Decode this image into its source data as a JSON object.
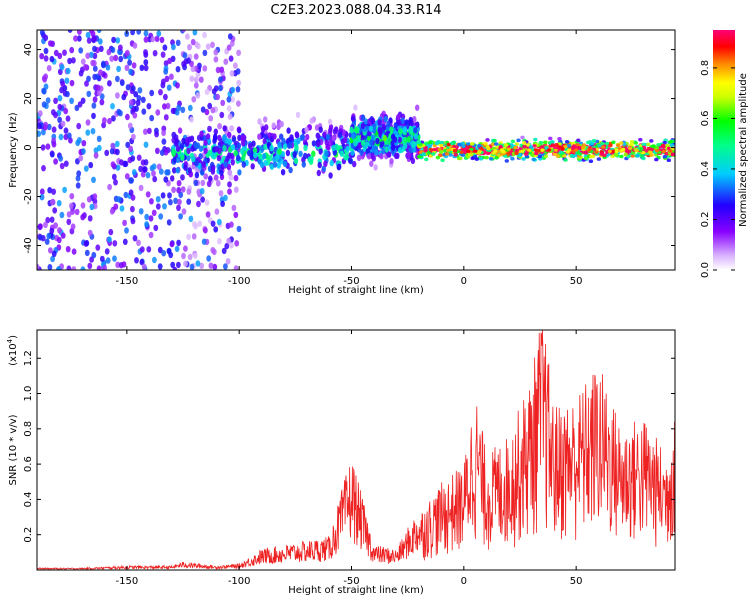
{
  "title": "C2E3.2023.088.04.33.R14",
  "colors": {
    "line": "#ee2222",
    "background": "#ffffff",
    "axis": "#000000"
  },
  "chart_data": [
    {
      "type": "heatmap",
      "xlabel": "Height of straight line (km)",
      "ylabel": "Frequency (Hz)",
      "xlim": [
        -190,
        94
      ],
      "ylim": [
        -50,
        48
      ],
      "x_ticks": [
        -150,
        -100,
        -50,
        0,
        50
      ],
      "y_ticks": [
        -40,
        -20,
        0,
        20,
        40
      ],
      "grid": false,
      "colorbar": {
        "label": "Normalized spectral amplitude",
        "range": [
          0,
          0.95
        ],
        "ticks": [
          0.0,
          0.2,
          0.4,
          0.6,
          0.8
        ],
        "colormap": [
          "#ffffff",
          "#8800ff",
          "#2200ff",
          "#00ffff",
          "#00ff00",
          "#ffff00",
          "#ff8800",
          "#ff0000",
          "#ff0088"
        ]
      },
      "regions": [
        {
          "x_range": [
            -190,
            -100
          ],
          "freq_center": 0,
          "freq_spread": 50,
          "amplitude": 0.3,
          "description": "broadband noise"
        },
        {
          "x_range": [
            -130,
            -50
          ],
          "freq_center": -3,
          "freq_spread": 8,
          "amplitude": 0.35
        },
        {
          "x_range": [
            -50,
            -20
          ],
          "freq_center": 4,
          "freq_spread": 7,
          "amplitude": 0.4
        },
        {
          "x_range": [
            -20,
            94
          ],
          "freq_center": -1,
          "freq_spread": 3,
          "amplitude": 0.85
        }
      ]
    },
    {
      "type": "line",
      "xlabel": "Height of straight line (km)",
      "ylabel": "SNR (10 * v/v)",
      "y_scale_label": "(x10",
      "y_scale_exp": "4",
      "xlim": [
        -190,
        94
      ],
      "ylim": [
        0,
        1.36
      ],
      "x_ticks": [
        -150,
        -100,
        -50,
        0,
        50
      ],
      "y_ticks": [
        0.2,
        0.4,
        0.6,
        0.8,
        1.0,
        1.2
      ],
      "grid": false,
      "series": [
        {
          "x": [
            -190,
            -170,
            -150,
            -130,
            -125,
            -110,
            -100,
            -90,
            -80,
            -70,
            -60,
            -50,
            -40,
            -30,
            -20,
            -10,
            0,
            5,
            10,
            20,
            30,
            35,
            40,
            50,
            60,
            70,
            80,
            90,
            94
          ],
          "values": [
            0.01,
            0.01,
            0.02,
            0.02,
            0.04,
            0.02,
            0.03,
            0.1,
            0.12,
            0.14,
            0.16,
            0.55,
            0.12,
            0.1,
            0.3,
            0.45,
            0.55,
            0.95,
            0.6,
            0.7,
            1.0,
            1.36,
            0.85,
            0.9,
            1.08,
            0.75,
            0.8,
            0.6,
            0.9
          ]
        }
      ]
    }
  ]
}
